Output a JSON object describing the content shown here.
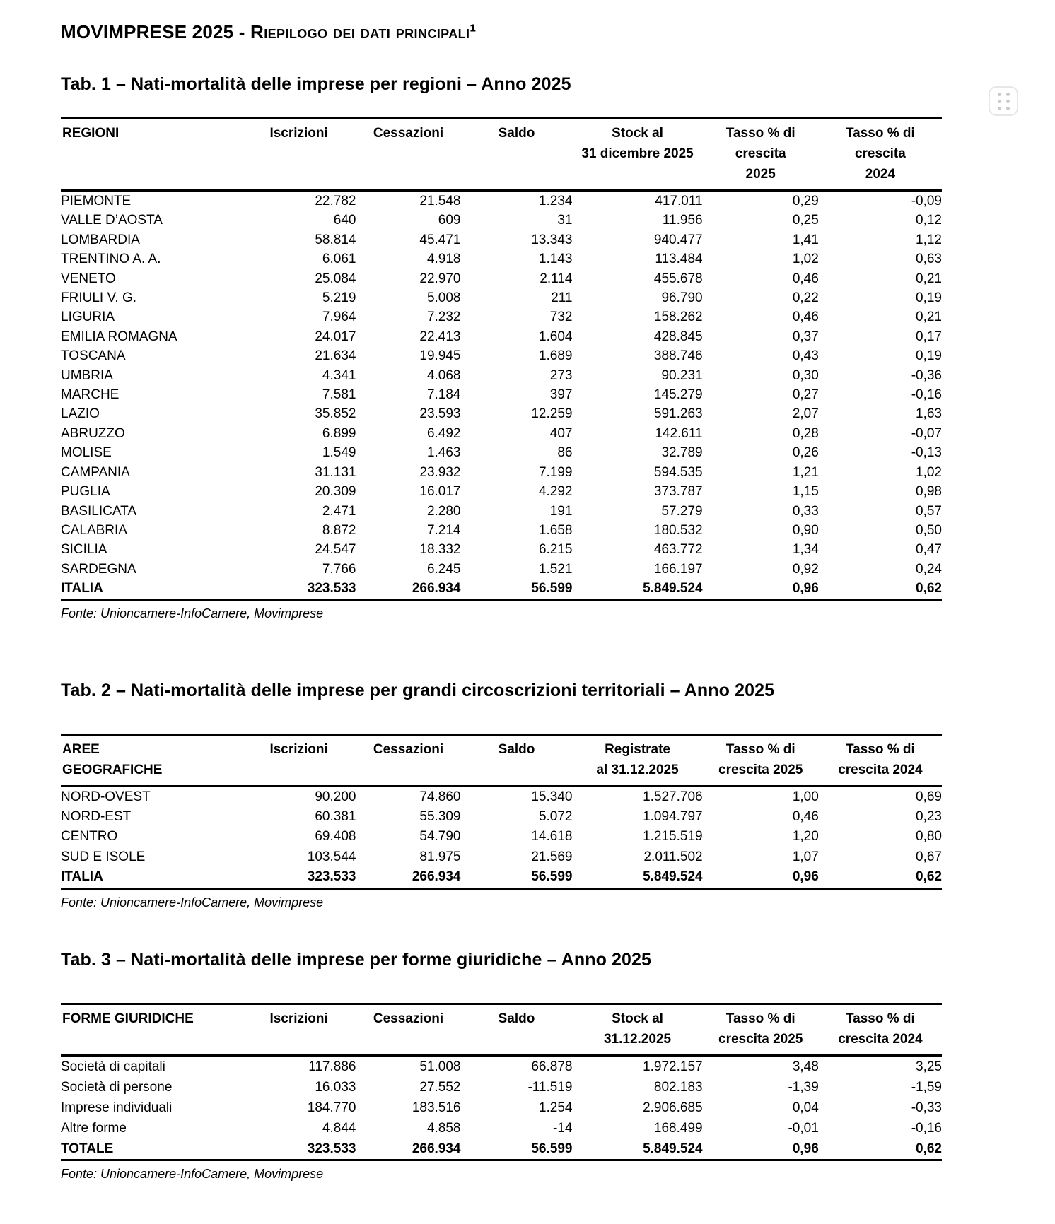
{
  "doc": {
    "title_main": "MOVIMPRESE 2025 - ",
    "title_smallcaps": "Riepilogo dei dati principali",
    "footnote_ref": "1"
  },
  "colors": {
    "text": "#000000",
    "background": "#ffffff",
    "handle_border": "#e7e7e7",
    "handle_dot": "#c9c9c9"
  },
  "icons": {
    "drag_handle": "six-dot-grid"
  },
  "sections": [
    {
      "title": "Tab. 1 – Nati-mortalità delle imprese per regioni – Anno 2025",
      "fonte": "Fonte: Unioncamere-InfoCamere, Movimprese",
      "table": {
        "columns": [
          {
            "lines": [
              "REGIONI"
            ],
            "align": "left"
          },
          {
            "lines": [
              "Iscrizioni"
            ],
            "align": "num"
          },
          {
            "lines": [
              "Cessazioni"
            ],
            "align": "num"
          },
          {
            "lines": [
              "Saldo"
            ],
            "align": "num"
          },
          {
            "lines": [
              "Stock al",
              "31 dicembre 2025"
            ],
            "align": "num"
          },
          {
            "lines": [
              "Tasso % di",
              "crescita",
              "2025"
            ],
            "align": "num"
          },
          {
            "lines": [
              "Tasso %  di",
              "crescita",
              "2024"
            ],
            "align": "num"
          }
        ],
        "rows": [
          {
            "label": "PIEMONTE",
            "values": [
              "22.782",
              "21.548",
              "1.234",
              "417.011",
              "0,29",
              "-0,09"
            ]
          },
          {
            "label": "VALLE D’AOSTA",
            "values": [
              "640",
              "609",
              "31",
              "11.956",
              "0,25",
              "0,12"
            ]
          },
          {
            "label": "LOMBARDIA",
            "values": [
              "58.814",
              "45.471",
              "13.343",
              "940.477",
              "1,41",
              "1,12"
            ]
          },
          {
            "label": "TRENTINO A. A.",
            "values": [
              "6.061",
              "4.918",
              "1.143",
              "113.484",
              "1,02",
              "0,63"
            ]
          },
          {
            "label": "VENETO",
            "values": [
              "25.084",
              "22.970",
              "2.114",
              "455.678",
              "0,46",
              "0,21"
            ]
          },
          {
            "label": "FRIULI V. G.",
            "values": [
              "5.219",
              "5.008",
              "211",
              "96.790",
              "0,22",
              "0,19"
            ]
          },
          {
            "label": "LIGURIA",
            "values": [
              "7.964",
              "7.232",
              "732",
              "158.262",
              "0,46",
              "0,21"
            ]
          },
          {
            "label": "EMILIA ROMAGNA",
            "values": [
              "24.017",
              "22.413",
              "1.604",
              "428.845",
              "0,37",
              "0,17"
            ]
          },
          {
            "label": "TOSCANA",
            "values": [
              "21.634",
              "19.945",
              "1.689",
              "388.746",
              "0,43",
              "0,19"
            ]
          },
          {
            "label": "UMBRIA",
            "values": [
              "4.341",
              "4.068",
              "273",
              "90.231",
              "0,30",
              "-0,36"
            ]
          },
          {
            "label": "MARCHE",
            "values": [
              "7.581",
              "7.184",
              "397",
              "145.279",
              "0,27",
              "-0,16"
            ]
          },
          {
            "label": "LAZIO",
            "values": [
              "35.852",
              "23.593",
              "12.259",
              "591.263",
              "2,07",
              "1,63"
            ]
          },
          {
            "label": "ABRUZZO",
            "values": [
              "6.899",
              "6.492",
              "407",
              "142.611",
              "0,28",
              "-0,07"
            ]
          },
          {
            "label": "MOLISE",
            "values": [
              "1.549",
              "1.463",
              "86",
              "32.789",
              "0,26",
              "-0,13"
            ]
          },
          {
            "label": "CAMPANIA",
            "values": [
              "31.131",
              "23.932",
              "7.199",
              "594.535",
              "1,21",
              "1,02"
            ]
          },
          {
            "label": "PUGLIA",
            "values": [
              "20.309",
              "16.017",
              "4.292",
              "373.787",
              "1,15",
              "0,98"
            ]
          },
          {
            "label": "BASILICATA",
            "values": [
              "2.471",
              "2.280",
              "191",
              "57.279",
              "0,33",
              "0,57"
            ]
          },
          {
            "label": "CALABRIA",
            "values": [
              "8.872",
              "7.214",
              "1.658",
              "180.532",
              "0,90",
              "0,50"
            ]
          },
          {
            "label": "SICILIA",
            "values": [
              "24.547",
              "18.332",
              "6.215",
              "463.772",
              "1,34",
              "0,47"
            ]
          },
          {
            "label": "SARDEGNA",
            "values": [
              "7.766",
              "6.245",
              "1.521",
              "166.197",
              "0,92",
              "0,24"
            ]
          },
          {
            "label": "ITALIA",
            "values": [
              "323.533",
              "266.934",
              "56.599",
              "5.849.524",
              "0,96",
              "0,62"
            ],
            "bold": true
          }
        ]
      }
    },
    {
      "title": "Tab. 2 – Nati-mortalità delle imprese per grandi circoscrizioni territoriali – Anno 2025",
      "fonte": "Fonte: Unioncamere-InfoCamere, Movimprese",
      "table": {
        "columns": [
          {
            "lines": [
              "AREE",
              "GEOGRAFICHE"
            ],
            "align": "left"
          },
          {
            "lines": [
              "Iscrizioni"
            ],
            "align": "num"
          },
          {
            "lines": [
              "Cessazioni"
            ],
            "align": "num"
          },
          {
            "lines": [
              "Saldo"
            ],
            "align": "num"
          },
          {
            "lines": [
              "Registrate",
              "al 31.12.2025"
            ],
            "align": "num"
          },
          {
            "lines": [
              "Tasso % di",
              "crescita 2025"
            ],
            "align": "num"
          },
          {
            "lines": [
              "Tasso % di",
              "crescita 2024"
            ],
            "align": "num"
          }
        ],
        "rows": [
          {
            "label": "NORD-OVEST",
            "values": [
              "90.200",
              "74.860",
              "15.340",
              "1.527.706",
              "1,00",
              "0,69"
            ]
          },
          {
            "label": "NORD-EST",
            "values": [
              "60.381",
              "55.309",
              "5.072",
              "1.094.797",
              "0,46",
              "0,23"
            ]
          },
          {
            "label": "CENTRO",
            "values": [
              "69.408",
              "54.790",
              "14.618",
              "1.215.519",
              "1,20",
              "0,80"
            ]
          },
          {
            "label": "SUD E ISOLE",
            "values": [
              "103.544",
              "81.975",
              "21.569",
              "2.011.502",
              "1,07",
              "0,67"
            ]
          },
          {
            "label": "ITALIA",
            "values": [
              "323.533",
              "266.934",
              "56.599",
              "5.849.524",
              "0,96",
              "0,62"
            ],
            "bold": true
          }
        ]
      }
    },
    {
      "title": "Tab. 3 – Nati-mortalità delle imprese per forme giuridiche – Anno 2025",
      "fonte": "Fonte: Unioncamere-InfoCamere, Movimprese",
      "table": {
        "columns": [
          {
            "lines": [
              "FORME GIURIDICHE"
            ],
            "align": "left"
          },
          {
            "lines": [
              "Iscrizioni"
            ],
            "align": "num"
          },
          {
            "lines": [
              "Cessazioni"
            ],
            "align": "num"
          },
          {
            "lines": [
              "Saldo"
            ],
            "align": "num"
          },
          {
            "lines": [
              "Stock al",
              "31.12.2025"
            ],
            "align": "num"
          },
          {
            "lines": [
              "Tasso % di",
              "crescita 2025"
            ],
            "align": "num"
          },
          {
            "lines": [
              "Tasso % di",
              "crescita 2024"
            ],
            "align": "num"
          }
        ],
        "rows": [
          {
            "label": "Società di capitali",
            "values": [
              "117.886",
              "51.008",
              "66.878",
              "1.972.157",
              "3,48",
              "3,25"
            ]
          },
          {
            "label": "Società di persone",
            "values": [
              "16.033",
              "27.552",
              "-11.519",
              "802.183",
              "-1,39",
              "-1,59"
            ]
          },
          {
            "label": "Imprese individuali",
            "values": [
              "184.770",
              "183.516",
              "1.254",
              "2.906.685",
              "0,04",
              "-0,33"
            ]
          },
          {
            "label": "Altre forme",
            "values": [
              "4.844",
              "4.858",
              "-14",
              "168.499",
              "-0,01",
              "-0,16"
            ]
          },
          {
            "label": "TOTALE",
            "values": [
              "323.533",
              "266.934",
              "56.599",
              "5.849.524",
              "0,96",
              "0,62"
            ],
            "bold": true
          }
        ]
      }
    }
  ]
}
